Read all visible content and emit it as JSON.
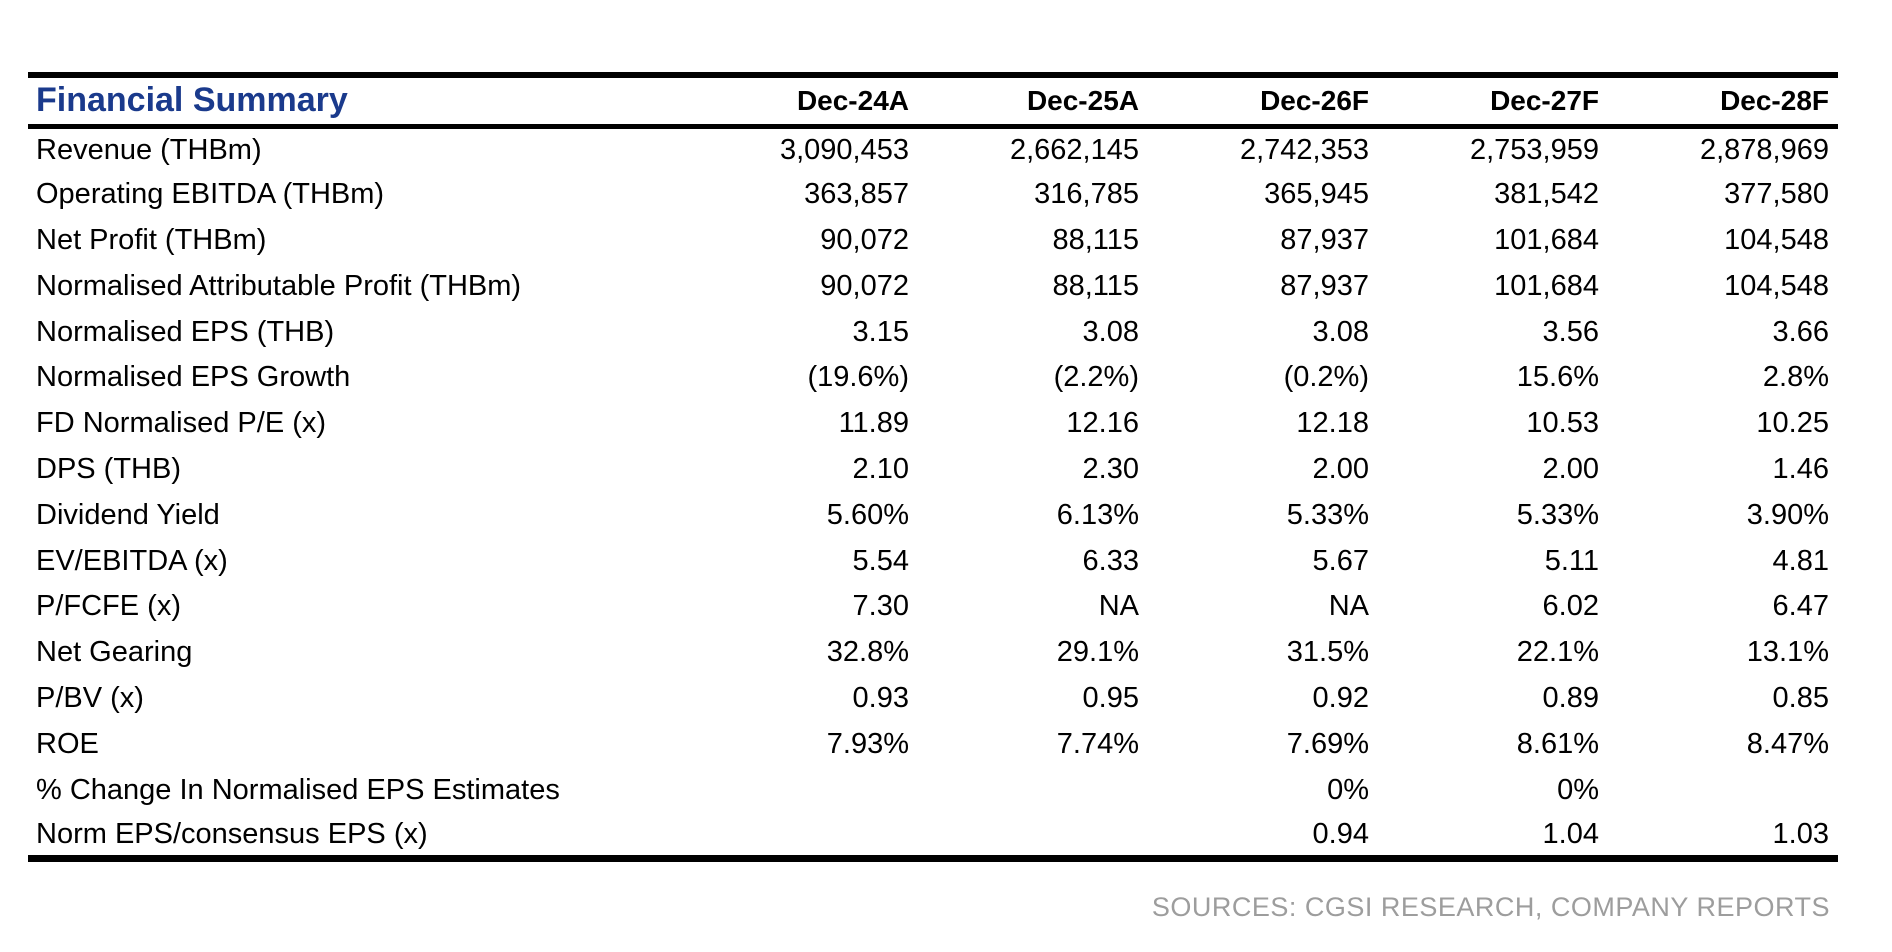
{
  "page": {
    "title": "Financial Summary",
    "source_note": "SOURCES: CGSI RESEARCH, COMPANY REPORTS"
  },
  "colors": {
    "title_blue": "#1a3a8c",
    "border_black": "#000000",
    "source_gray": "#9d9d9d"
  },
  "table": {
    "columns": [
      "Dec-24A",
      "Dec-25A",
      "Dec-26F",
      "Dec-27F",
      "Dec-28F"
    ],
    "rows": [
      {
        "label": "Revenue (THBm)",
        "values": [
          "3,090,453",
          "2,662,145",
          "2,742,353",
          "2,753,959",
          "2,878,969"
        ]
      },
      {
        "label": "Operating EBITDA (THBm)",
        "values": [
          "363,857",
          "316,785",
          "365,945",
          "381,542",
          "377,580"
        ]
      },
      {
        "label": "Net Profit (THBm)",
        "values": [
          "90,072",
          "88,115",
          "87,937",
          "101,684",
          "104,548"
        ]
      },
      {
        "label": "Normalised Attributable Profit  (THBm)",
        "values": [
          "90,072",
          "88,115",
          "87,937",
          "101,684",
          "104,548"
        ]
      },
      {
        "label": "Normalised EPS (THB)",
        "values": [
          "3.15",
          "3.08",
          "3.08",
          "3.56",
          "3.66"
        ]
      },
      {
        "label": "Normalised EPS Growth",
        "values": [
          "(19.6%)",
          "(2.2%)",
          "(0.2%)",
          "15.6%",
          "2.8%"
        ]
      },
      {
        "label": "FD Normalised P/E (x)",
        "values": [
          "11.89",
          "12.16",
          "12.18",
          "10.53",
          "10.25"
        ]
      },
      {
        "label": "DPS (THB)",
        "values": [
          "2.10",
          "2.30",
          "2.00",
          "2.00",
          "1.46"
        ]
      },
      {
        "label": "Dividend Yield",
        "values": [
          "5.60%",
          "6.13%",
          "5.33%",
          "5.33%",
          "3.90%"
        ]
      },
      {
        "label": "EV/EBITDA (x)",
        "values": [
          "5.54",
          "6.33",
          "5.67",
          "5.11",
          "4.81"
        ]
      },
      {
        "label": "P/FCFE (x)",
        "values": [
          "7.30",
          "NA",
          "NA",
          "6.02",
          "6.47"
        ]
      },
      {
        "label": "Net Gearing",
        "values": [
          "32.8%",
          "29.1%",
          "31.5%",
          "22.1%",
          "13.1%"
        ]
      },
      {
        "label": "P/BV (x)",
        "values": [
          "0.93",
          "0.95",
          "0.92",
          "0.89",
          "0.85"
        ]
      },
      {
        "label": "ROE",
        "values": [
          "7.93%",
          "7.74%",
          "7.69%",
          "8.61%",
          "8.47%"
        ]
      },
      {
        "label": "% Change In Normalised EPS Estimates",
        "values": [
          "",
          "",
          "0%",
          "0%",
          ""
        ]
      },
      {
        "label": "Norm EPS/consensus EPS (x)",
        "values": [
          "",
          "",
          "0.94",
          "1.04",
          "1.03"
        ]
      }
    ]
  }
}
